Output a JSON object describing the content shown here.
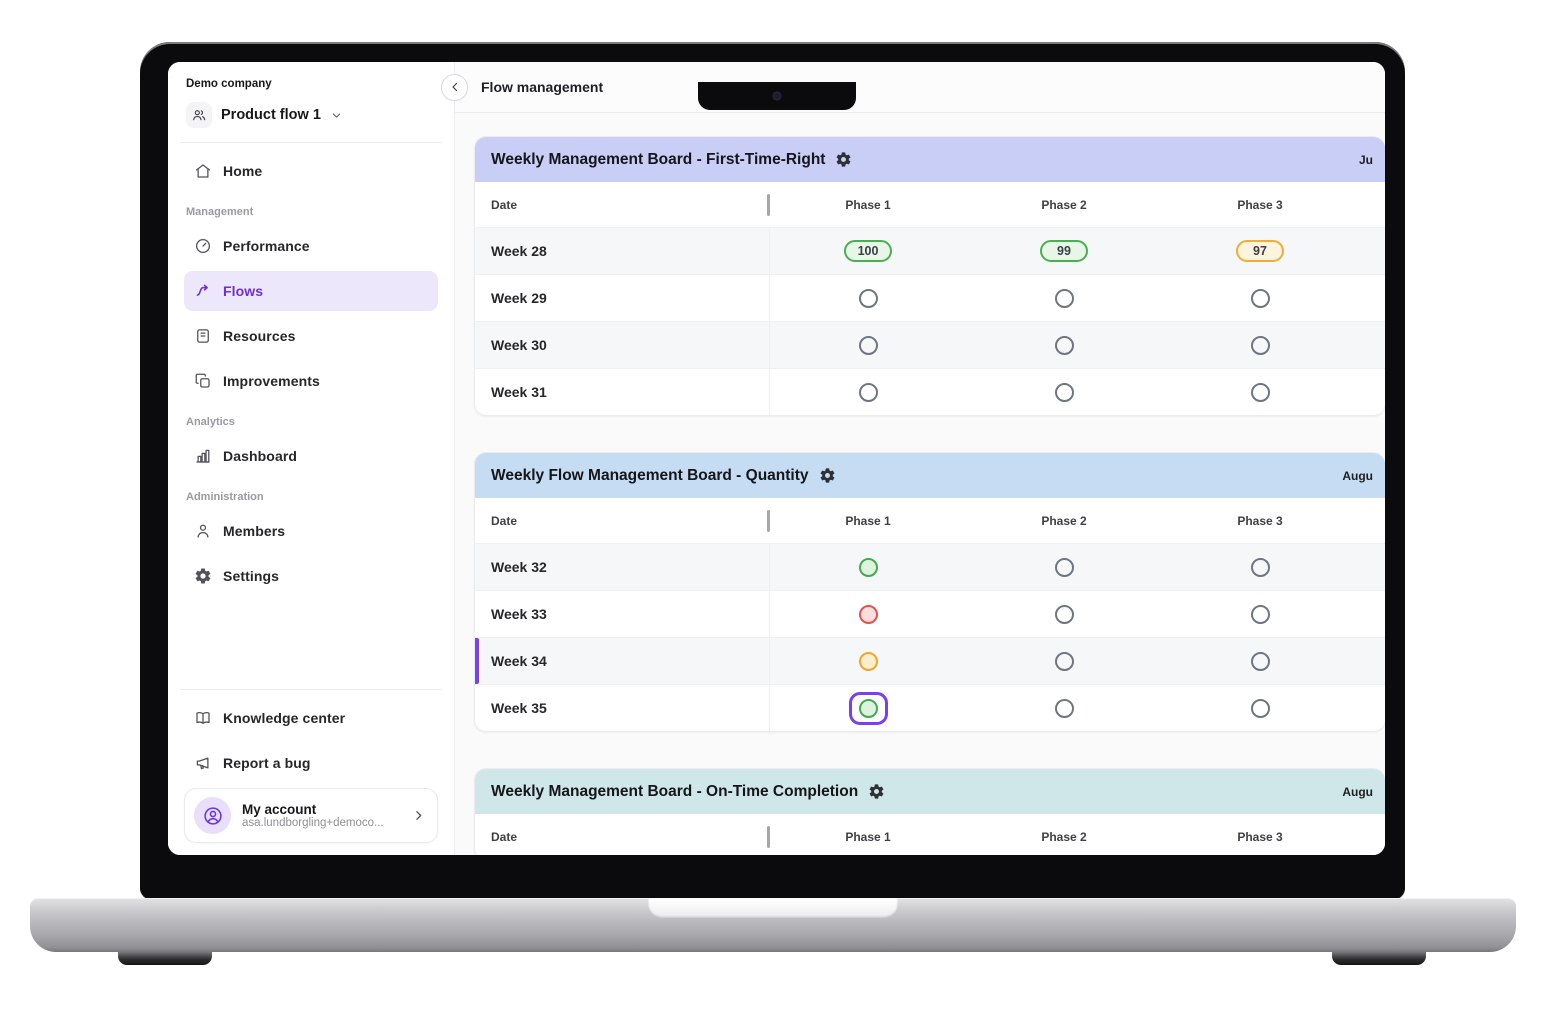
{
  "header": {
    "title": "Flow management",
    "back_icon": "chevron-left"
  },
  "sidebar": {
    "company": "Demo company",
    "workspace": {
      "label": "Product flow 1",
      "icon": "people"
    },
    "items": [
      {
        "kind": "link",
        "id": "home",
        "icon": "home",
        "label": "Home",
        "active": false
      },
      {
        "kind": "section",
        "label": "Management"
      },
      {
        "kind": "link",
        "id": "performance",
        "icon": "gauge",
        "label": "Performance",
        "active": false
      },
      {
        "kind": "link",
        "id": "flows",
        "icon": "flow",
        "label": "Flows",
        "active": true
      },
      {
        "kind": "link",
        "id": "resources",
        "icon": "book-rings",
        "label": "Resources",
        "active": false
      },
      {
        "kind": "link",
        "id": "improvements",
        "icon": "copy",
        "label": "Improvements",
        "active": false
      },
      {
        "kind": "section",
        "label": "Analytics"
      },
      {
        "kind": "link",
        "id": "dashboard",
        "icon": "bar-chart",
        "label": "Dashboard",
        "active": false
      },
      {
        "kind": "section",
        "label": "Administration"
      },
      {
        "kind": "link",
        "id": "members",
        "icon": "person",
        "label": "Members",
        "active": false
      },
      {
        "kind": "link",
        "id": "settings",
        "icon": "gear",
        "label": "Settings",
        "active": false
      }
    ],
    "footer_items": [
      {
        "id": "knowledge-center",
        "icon": "open-book",
        "label": "Knowledge center"
      },
      {
        "id": "report-a-bug",
        "icon": "megaphone",
        "label": "Report a bug"
      }
    ],
    "account": {
      "title": "My account",
      "email": "asa.lundborgling+democo..."
    }
  },
  "colors": {
    "accent_purple": "#6d2fd5",
    "marker_purple": "#7b3ff2",
    "status_green": "#43a94f",
    "status_red": "#e8504f",
    "status_amber": "#f0a431",
    "status_gray": "#6f7680"
  },
  "boards": [
    {
      "title": "Weekly Management Board - First-Time-Right",
      "period": "Ju",
      "header_color": "#c8cef5",
      "columns": [
        "Date",
        "Phase 1",
        "Phase 2",
        "Phase 3"
      ],
      "rows": [
        {
          "label": "Week 28",
          "marker": false,
          "cells": [
            {
              "type": "badge",
              "color": "green",
              "value": "100"
            },
            {
              "type": "badge",
              "color": "green",
              "value": "99"
            },
            {
              "type": "badge",
              "color": "amber",
              "value": "97"
            }
          ]
        },
        {
          "label": "Week 29",
          "marker": false,
          "cells": [
            {
              "type": "empty"
            },
            {
              "type": "empty"
            },
            {
              "type": "empty"
            }
          ]
        },
        {
          "label": "Week 30",
          "marker": false,
          "cells": [
            {
              "type": "empty"
            },
            {
              "type": "empty"
            },
            {
              "type": "empty"
            }
          ]
        },
        {
          "label": "Week 31",
          "marker": false,
          "cells": [
            {
              "type": "empty"
            },
            {
              "type": "empty"
            },
            {
              "type": "empty"
            }
          ]
        }
      ]
    },
    {
      "title": "Weekly Flow Management Board - Quantity",
      "period": "Augu",
      "header_color": "#c5dcf2",
      "columns": [
        "Date",
        "Phase 1",
        "Phase 2",
        "Phase 3"
      ],
      "rows": [
        {
          "label": "Week 32",
          "marker": false,
          "cells": [
            {
              "type": "status",
              "color": "green"
            },
            {
              "type": "empty"
            },
            {
              "type": "empty"
            }
          ]
        },
        {
          "label": "Week 33",
          "marker": false,
          "cells": [
            {
              "type": "status",
              "color": "red"
            },
            {
              "type": "empty"
            },
            {
              "type": "empty"
            }
          ]
        },
        {
          "label": "Week 34",
          "marker": true,
          "cells": [
            {
              "type": "status",
              "color": "amber"
            },
            {
              "type": "empty"
            },
            {
              "type": "empty"
            }
          ]
        },
        {
          "label": "Week 35",
          "marker": false,
          "cells": [
            {
              "type": "status",
              "color": "green",
              "selected": true
            },
            {
              "type": "empty"
            },
            {
              "type": "empty"
            }
          ]
        }
      ]
    },
    {
      "title": "Weekly Management Board - On-Time Completion",
      "period": "Augu",
      "header_color": "#cfe7e9",
      "columns": [
        "Date",
        "Phase 1",
        "Phase 2",
        "Phase 3"
      ],
      "rows": []
    }
  ]
}
